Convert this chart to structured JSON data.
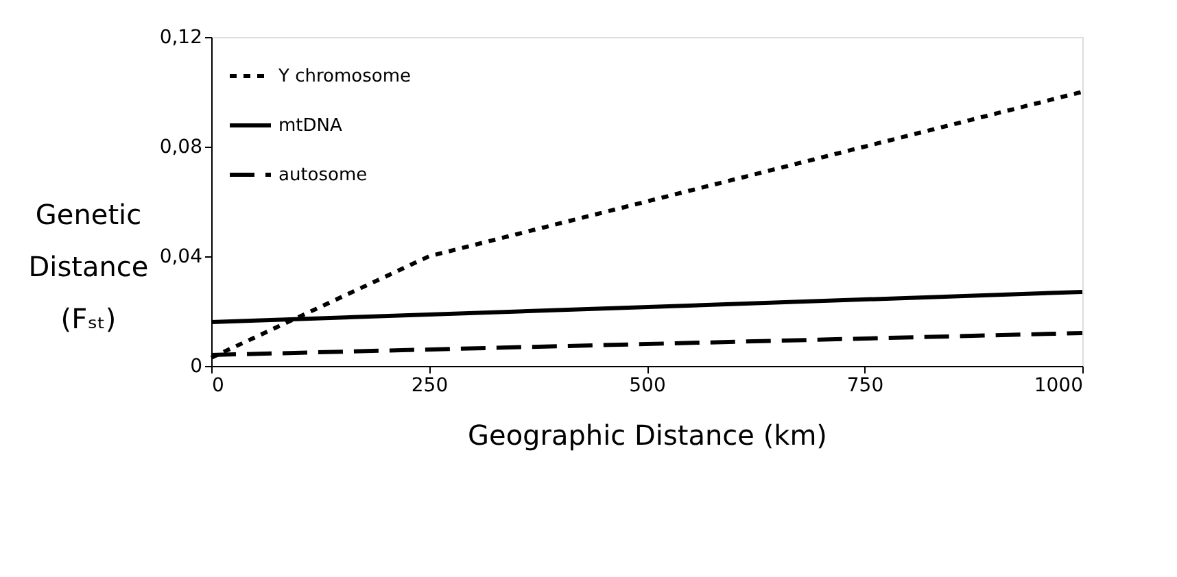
{
  "chart_data": {
    "type": "line",
    "xlabel": "Geographic Distance (km)",
    "ylabel": "Genetic Distance (Fₛₜ)",
    "xlim": [
      0,
      1000
    ],
    "xticks": [
      0,
      250,
      500,
      750,
      {
        "value": 1000,
        "label": "1000"
      }
    ],
    "ylim": [
      0,
      0.12
    ],
    "yticks": [
      0,
      {
        "value": 0.04,
        "label": "0,04"
      },
      {
        "value": 0.08,
        "label": "0,08"
      },
      {
        "value": 0.12,
        "label": "0,12"
      }
    ],
    "grid": false,
    "legend": "top left",
    "series": [
      {
        "name": "Y chromosome",
        "color": "#000000",
        "line_style": "dotted",
        "x": [
          0,
          250,
          500,
          1000
        ],
        "values": [
          0.003,
          0.04,
          0.06,
          0.1
        ]
      },
      {
        "name": "mtDNA",
        "color": "#000000",
        "line_style": "solid",
        "x": [
          0,
          1000
        ],
        "values": [
          0.016,
          0.027
        ]
      },
      {
        "name": "autosome",
        "color": "#000000",
        "line_style": "dashed",
        "x": [
          0,
          1000
        ],
        "values": [
          0.004,
          0.012
        ]
      }
    ]
  }
}
